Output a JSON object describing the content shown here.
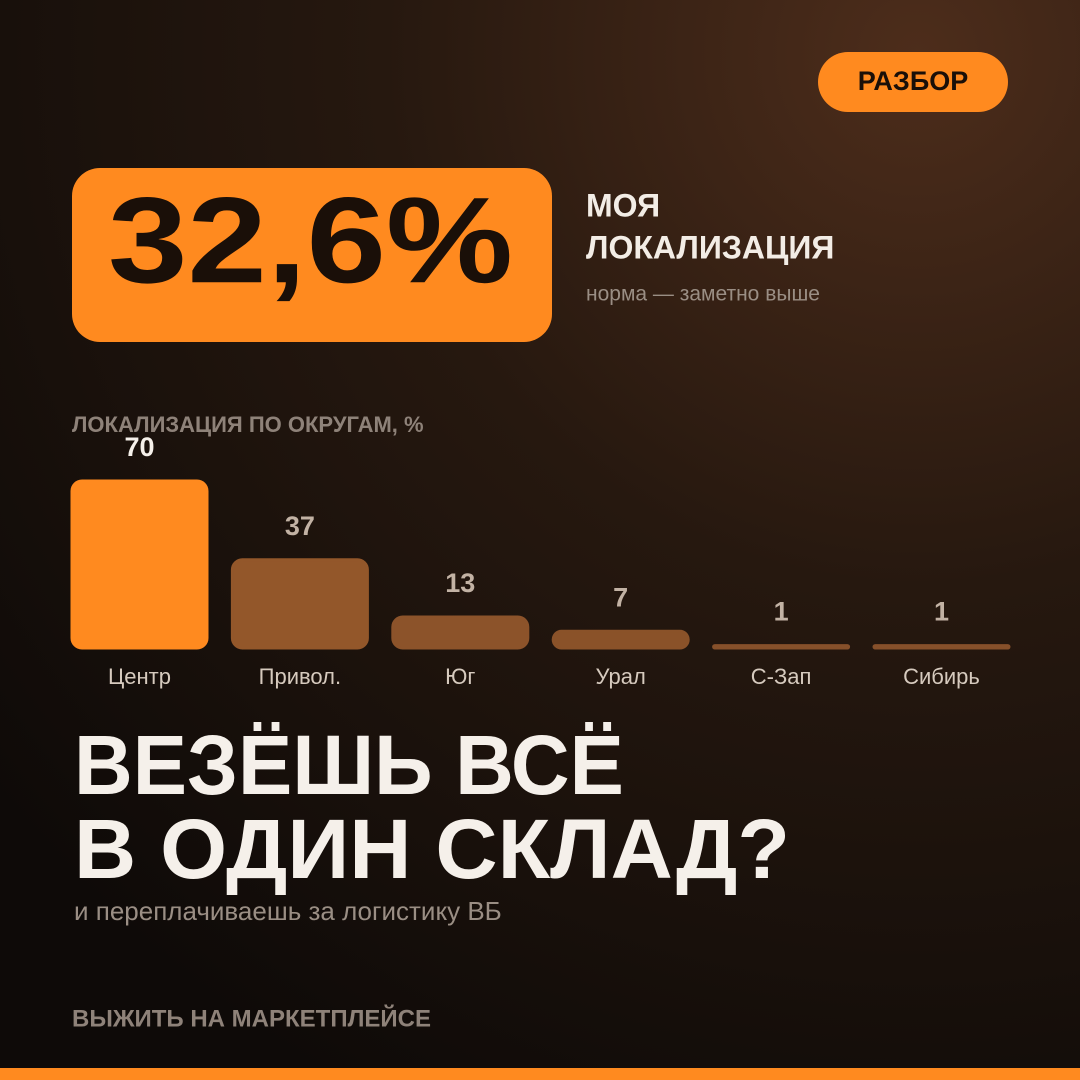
{
  "badge": "РАЗБОР",
  "highlight": {
    "value_text": "32,6%",
    "label_lines": [
      "МОЯ",
      "ЛОКАЛИЗАЦИЯ"
    ],
    "note": "норма — заметно выше"
  },
  "chart_data": {
    "type": "bar",
    "title": "ЛОКАЛИЗАЦИЯ ПО ОКРУГАМ, %",
    "categories": [
      "Центр",
      "Привол.",
      "Юг",
      "Урал",
      "С-Зап",
      "Сибирь"
    ],
    "values": [
      70,
      37,
      13,
      7,
      1,
      1
    ],
    "colors": [
      "#ff8a1f",
      "#93572a",
      "#8c532a",
      "#8a5229",
      "#86502a",
      "#86502a"
    ]
  },
  "headline": {
    "lines": [
      "ВЕЗЁШЬ ВСЁ",
      "В ОДИН СКЛАД?"
    ],
    "subtitle": "и переплачиваешь за логистику ВБ"
  },
  "footer": "ВЫЖИТЬ НА МАРКЕТПЛЕЙСЕ"
}
